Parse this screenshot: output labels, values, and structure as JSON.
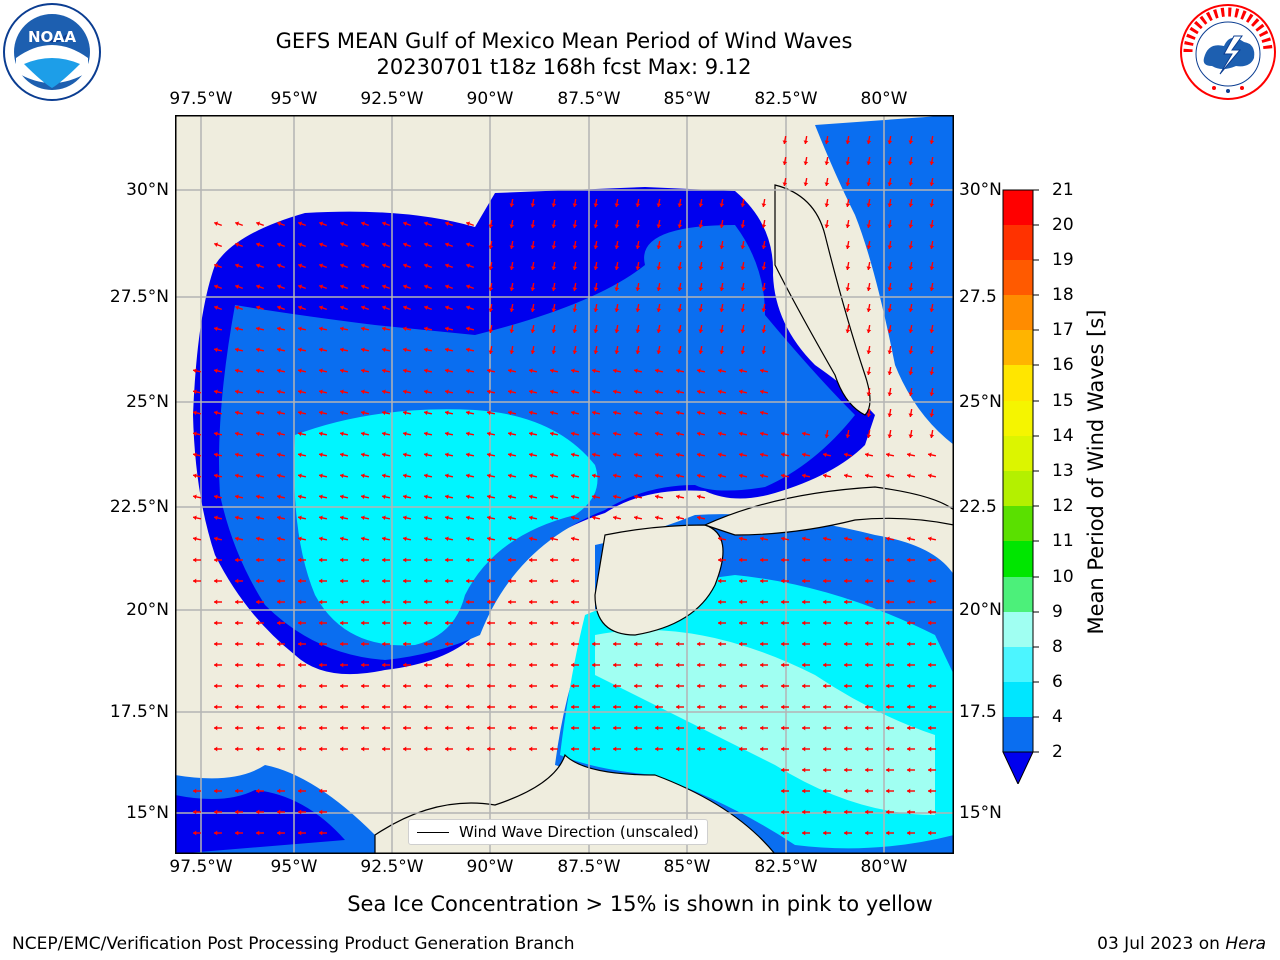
{
  "title": {
    "line1": "GEFS MEAN Gulf of Mexico Mean Period of Wind Waves",
    "line2": "20230701 t18z 168h fcst   Max: 9.12"
  },
  "logos": {
    "left": {
      "icon": "noaa-logo-icon",
      "text": "NOAA"
    },
    "right": {
      "icon": "nws-logo-icon",
      "text": "NATIONAL WEATHER SERVICE"
    }
  },
  "axes": {
    "lon_labels": [
      "97.5°W",
      "95°W",
      "92.5°W",
      "90°W",
      "87.5°W",
      "85°W",
      "82.5°W",
      "80°W"
    ],
    "lat_labels_left": [
      "30°N",
      "27.5°N",
      "25°N",
      "22.5°N",
      "20°N",
      "17.5°N",
      "15°N"
    ],
    "lat_labels_right": [
      "30°N",
      "27.5",
      "25°N",
      "22.5",
      "20°N",
      "17.5",
      "15°N"
    ]
  },
  "colorbar": {
    "label": "Mean Period of Wind Waves [s]",
    "ticks": [
      "2",
      "4",
      "6",
      "8",
      "9",
      "10",
      "11",
      "12",
      "13",
      "14",
      "15",
      "16",
      "17",
      "18",
      "19",
      "20",
      "21"
    ],
    "colors": [
      "#0a6ef0",
      "#00e6ff",
      "#4cf5ff",
      "#a0fff2",
      "#4cf07a",
      "#00e600",
      "#5ae000",
      "#b4f000",
      "#dcf500",
      "#f5f500",
      "#ffe600",
      "#ffb400",
      "#ff8c00",
      "#ff5a00",
      "#ff3200",
      "#ff0000"
    ],
    "below_color": "#0000ee"
  },
  "legend": {
    "label": "Wind Wave Direction (unscaled)"
  },
  "note": "Sea Ice Concentration > 15% is shown in pink to yellow",
  "footer": {
    "left": "NCEP/EMC/Verification Post Processing Product Generation Branch",
    "right_date": "03 Jul 2023 on ",
    "right_host": "Hera"
  },
  "map_colors": {
    "land": "#efedde",
    "grid": "#b4b4b4",
    "arrow": "#ff0000",
    "deep_blue": "#0000ee",
    "mid_blue": "#0a6ef0",
    "cyan": "#00f5ff",
    "light_cyan": "#4cf5ff",
    "pale_cyan": "#a0fff2"
  }
}
